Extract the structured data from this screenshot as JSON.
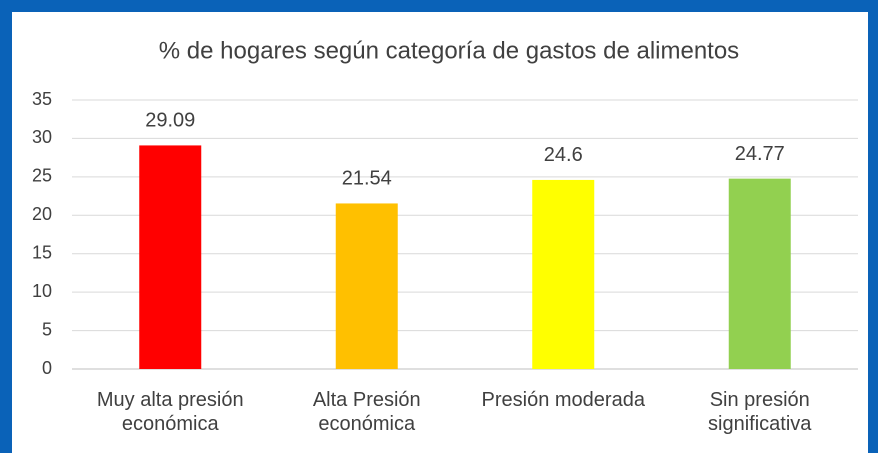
{
  "chart_data": {
    "type": "bar",
    "title": "% de hogares según categoría de gastos de alimentos",
    "categories": [
      "Muy alta presión económica",
      "Alta Presión económica",
      "Presión moderada",
      "Sin presión significativa"
    ],
    "values": [
      29.09,
      21.54,
      24.6,
      24.77
    ],
    "colors": [
      "#ff0000",
      "#ffc000",
      "#ffff00",
      "#92d050"
    ],
    "ylim": [
      0,
      35
    ],
    "yticks": [
      0,
      5,
      10,
      15,
      20,
      25,
      30,
      35
    ],
    "grid": true
  }
}
